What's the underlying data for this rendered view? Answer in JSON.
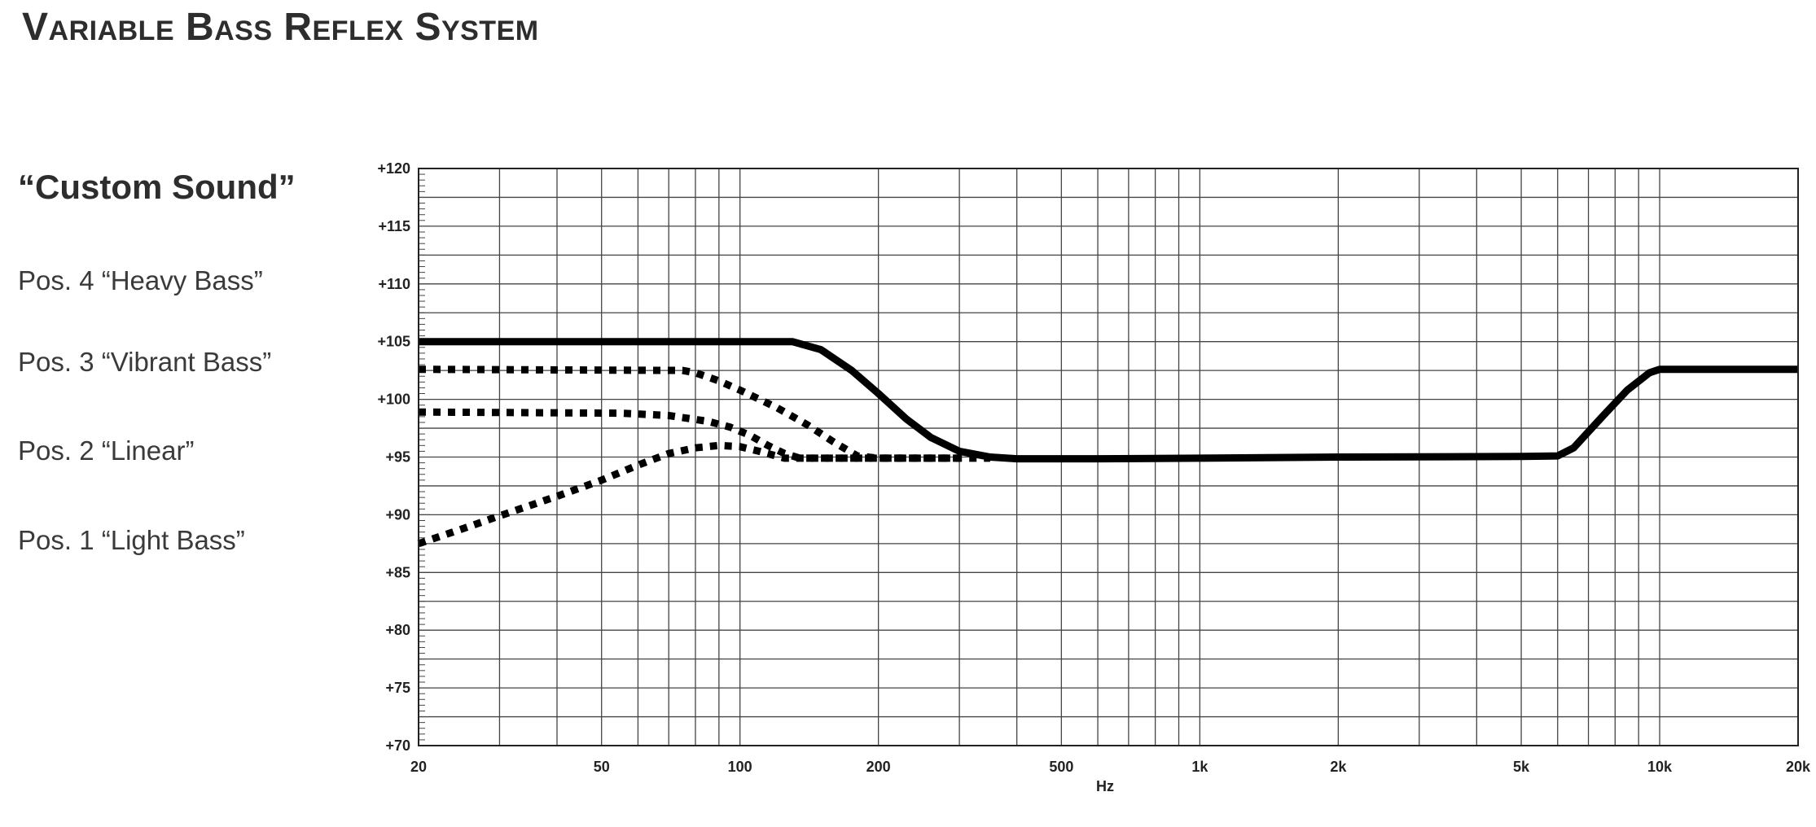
{
  "page": {
    "title": "Variable Bass Reflex System"
  },
  "legend": {
    "heading": "“Custom Sound”",
    "items": [
      "Pos. 4 “Heavy Bass”",
      "Pos. 3 “Vibrant Bass”",
      "Pos. 2 “Linear”",
      "Pos. 1 “Light Bass”"
    ]
  },
  "chart_data": {
    "type": "line",
    "title": "",
    "xlabel": "Hz",
    "ylabel": "",
    "x_scale": "log",
    "xlim": [
      20,
      20000
    ],
    "ylim": [
      70,
      120
    ],
    "grid": true,
    "x_ticks": [
      {
        "value": 20,
        "label": "20"
      },
      {
        "value": 50,
        "label": "50"
      },
      {
        "value": 100,
        "label": "100"
      },
      {
        "value": 200,
        "label": "200"
      },
      {
        "value": 500,
        "label": "500"
      },
      {
        "value": 1000,
        "label": "1k"
      },
      {
        "value": 2000,
        "label": "2k"
      },
      {
        "value": 5000,
        "label": "5k"
      },
      {
        "value": 10000,
        "label": "10k"
      },
      {
        "value": 20000,
        "label": "20k"
      }
    ],
    "y_ticks": [
      {
        "value": 70,
        "label": "+70"
      },
      {
        "value": 75,
        "label": "+75"
      },
      {
        "value": 80,
        "label": "+80"
      },
      {
        "value": 85,
        "label": "+85"
      },
      {
        "value": 90,
        "label": "+90"
      },
      {
        "value": 95,
        "label": "+95"
      },
      {
        "value": 100,
        "label": "+100"
      },
      {
        "value": 105,
        "label": "+105"
      },
      {
        "value": 110,
        "label": "+110"
      },
      {
        "value": 115,
        "label": "+115"
      },
      {
        "value": 120,
        "label": "+120"
      }
    ],
    "series": [
      {
        "style": "solid",
        "points": [
          [
            20,
            105
          ],
          [
            130,
            105
          ],
          [
            150,
            104.3
          ],
          [
            175,
            102.5
          ],
          [
            200,
            100.5
          ],
          [
            230,
            98.3
          ],
          [
            260,
            96.7
          ],
          [
            300,
            95.5
          ],
          [
            350,
            95.0
          ],
          [
            400,
            94.85
          ],
          [
            600,
            94.85
          ],
          [
            1000,
            94.9
          ],
          [
            2000,
            95.0
          ],
          [
            5000,
            95.05
          ],
          [
            6000,
            95.1
          ],
          [
            6500,
            95.8
          ],
          [
            7500,
            98.5
          ],
          [
            8500,
            100.8
          ],
          [
            9500,
            102.3
          ],
          [
            10000,
            102.6
          ],
          [
            20000,
            102.6
          ]
        ]
      },
      {
        "style": "dotted",
        "points": [
          [
            20,
            102.6
          ],
          [
            75,
            102.5
          ],
          [
            80,
            102.3
          ],
          [
            90,
            101.6
          ],
          [
            100,
            100.8
          ],
          [
            120,
            99.3
          ],
          [
            140,
            97.8
          ],
          [
            160,
            96.3
          ],
          [
            180,
            95.1
          ],
          [
            200,
            94.9
          ],
          [
            350,
            94.9
          ]
        ]
      },
      {
        "style": "dotted",
        "points": [
          [
            20,
            98.9
          ],
          [
            55,
            98.8
          ],
          [
            70,
            98.6
          ],
          [
            85,
            98.1
          ],
          [
            95,
            97.6
          ],
          [
            105,
            96.9
          ],
          [
            115,
            96.0
          ],
          [
            125,
            95.3
          ],
          [
            135,
            94.9
          ],
          [
            200,
            94.9
          ],
          [
            300,
            94.9
          ]
        ]
      },
      {
        "style": "dotted",
        "points": [
          [
            20,
            87.5
          ],
          [
            25,
            88.8
          ],
          [
            30,
            89.9
          ],
          [
            40,
            91.6
          ],
          [
            50,
            93.0
          ],
          [
            60,
            94.3
          ],
          [
            70,
            95.3
          ],
          [
            80,
            95.8
          ],
          [
            90,
            96.0
          ],
          [
            100,
            95.9
          ],
          [
            110,
            95.5
          ],
          [
            125,
            94.9
          ],
          [
            200,
            94.9
          ],
          [
            300,
            94.9
          ]
        ]
      }
    ]
  }
}
